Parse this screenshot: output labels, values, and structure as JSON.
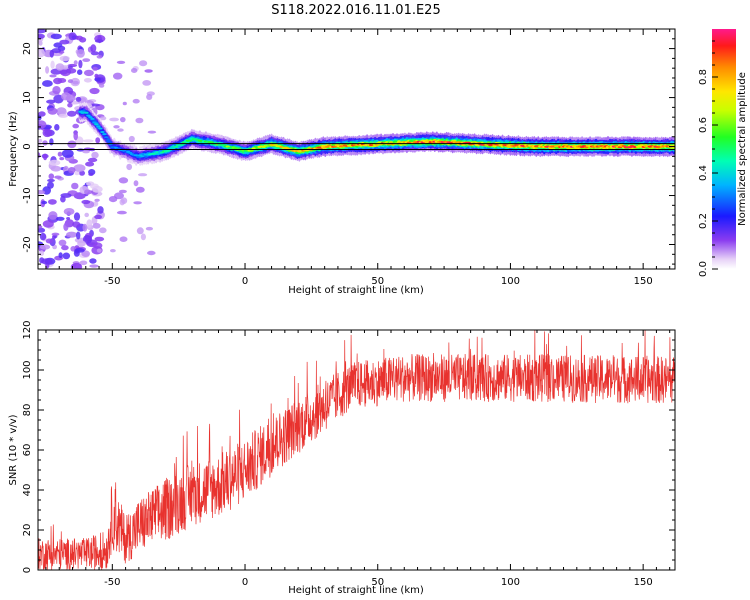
{
  "title": "S118.2022.016.11.01.E25",
  "chart_data": [
    {
      "type": "heatmap",
      "xlabel": "Height of straight line (km)",
      "ylabel": "Frequency (Hz)",
      "xlim": [
        -78,
        162
      ],
      "ylim": [
        -25,
        24
      ],
      "xticks": [
        -50,
        0,
        50,
        100,
        150
      ],
      "yticks": [
        -20,
        -10,
        0,
        10,
        20
      ],
      "colorbar": {
        "label": "Normalized spectral amplitude",
        "range": [
          0,
          1
        ],
        "ticks": [
          0.0,
          0.2,
          0.4,
          0.6,
          0.8
        ],
        "tick_labels": [
          "0.0",
          "0.2",
          "0.4",
          "0.6",
          "0.8"
        ],
        "colormap": "rainbow (white-purple-blue-cyan-green-yellow-orange-red-magenta)"
      },
      "reference_line_hz": 0,
      "ridge": [
        {
          "x": -60,
          "freq": 7,
          "amp": 0.35
        },
        {
          "x": -55,
          "freq": 4,
          "amp": 0.35
        },
        {
          "x": -50,
          "freq": 0,
          "amp": 0.3
        },
        {
          "x": -45,
          "freq": -1,
          "amp": 0.3
        },
        {
          "x": -40,
          "freq": -2,
          "amp": 0.35
        },
        {
          "x": -30,
          "freq": -1,
          "amp": 0.45
        },
        {
          "x": -20,
          "freq": 1.5,
          "amp": 0.5
        },
        {
          "x": -10,
          "freq": 0.5,
          "amp": 0.55
        },
        {
          "x": 0,
          "freq": -1,
          "amp": 0.6
        },
        {
          "x": 10,
          "freq": 0.5,
          "amp": 0.7
        },
        {
          "x": 20,
          "freq": -1,
          "amp": 0.75
        },
        {
          "x": 30,
          "freq": 0,
          "amp": 0.8
        },
        {
          "x": 50,
          "freq": 0.5,
          "amp": 0.8
        },
        {
          "x": 70,
          "freq": 1,
          "amp": 0.85
        },
        {
          "x": 90,
          "freq": 0.5,
          "amp": 0.85
        },
        {
          "x": 110,
          "freq": 0,
          "amp": 0.85
        },
        {
          "x": 130,
          "freq": 0,
          "amp": 0.85
        },
        {
          "x": 160,
          "freq": 0,
          "amp": 0.85
        }
      ]
    },
    {
      "type": "line",
      "xlabel": "Height of straight line (km)",
      "ylabel": "SNR (10 * v/v)",
      "xlim": [
        -78,
        162
      ],
      "ylim": [
        0,
        120
      ],
      "xticks": [
        -50,
        0,
        50,
        100,
        150
      ],
      "yticks": [
        0,
        20,
        40,
        60,
        80,
        100,
        120
      ],
      "series": [
        {
          "color": "#e8322e",
          "envelope": [
            {
              "x": -78,
              "mean": 8,
              "spread": 8
            },
            {
              "x": -60,
              "mean": 8,
              "spread": 8
            },
            {
              "x": -52,
              "mean": 10,
              "spread": 10
            },
            {
              "x": -50,
              "mean": 28,
              "spread": 18
            },
            {
              "x": -45,
              "mean": 15,
              "spread": 12
            },
            {
              "x": -40,
              "mean": 22,
              "spread": 14
            },
            {
              "x": -30,
              "mean": 30,
              "spread": 16
            },
            {
              "x": -20,
              "mean": 38,
              "spread": 16
            },
            {
              "x": -10,
              "mean": 42,
              "spread": 16
            },
            {
              "x": 0,
              "mean": 50,
              "spread": 16
            },
            {
              "x": 10,
              "mean": 62,
              "spread": 15
            },
            {
              "x": 20,
              "mean": 72,
              "spread": 14
            },
            {
              "x": 30,
              "mean": 82,
              "spread": 13
            },
            {
              "x": 40,
              "mean": 92,
              "spread": 12
            },
            {
              "x": 60,
              "mean": 96,
              "spread": 12
            },
            {
              "x": 100,
              "mean": 96,
              "spread": 12
            },
            {
              "x": 162,
              "mean": 95,
              "spread": 12
            }
          ]
        }
      ]
    }
  ]
}
